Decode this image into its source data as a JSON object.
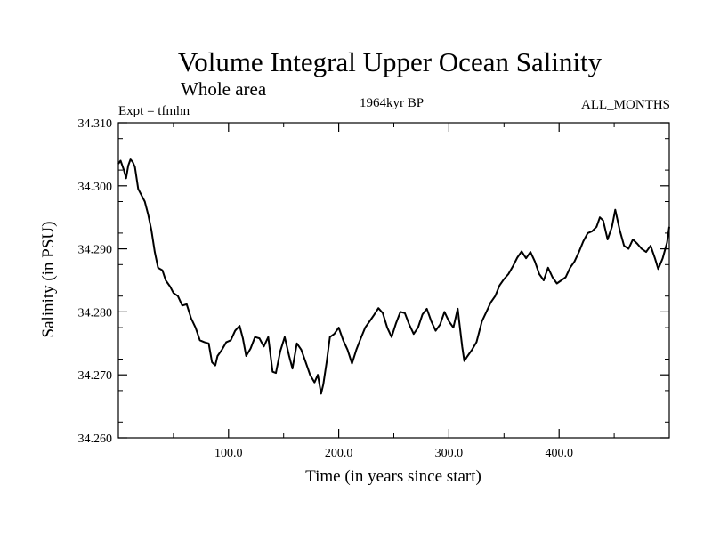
{
  "chart_data": {
    "type": "line",
    "title": "Volume Integral Upper Ocean Salinity",
    "subtitle": "Whole area",
    "left_label": "Expt = tfmhn",
    "center_label": "1964kyr BP",
    "right_label": "ALL_MONTHS",
    "xlabel": "Time (in years since start)",
    "ylabel": "Salinity (in PSU)",
    "xlim": [
      0,
      500
    ],
    "ylim": [
      34.26,
      34.31
    ],
    "xticks": [
      {
        "value": 100,
        "label": "100.0"
      },
      {
        "value": 200,
        "label": "200.0"
      },
      {
        "value": 300,
        "label": "300.0"
      },
      {
        "value": 400,
        "label": "400.0"
      }
    ],
    "yticks": [
      {
        "value": 34.26,
        "label": "34.260"
      },
      {
        "value": 34.27,
        "label": "34.270"
      },
      {
        "value": 34.28,
        "label": "34.280"
      },
      {
        "value": 34.29,
        "label": "34.290"
      },
      {
        "value": 34.3,
        "label": "34.300"
      },
      {
        "value": 34.31,
        "label": "34.310"
      }
    ],
    "grid": false,
    "series": [
      {
        "name": "salinity",
        "x": [
          0,
          2,
          5,
          7,
          9,
          11,
          13,
          15,
          18,
          21,
          24,
          27,
          30,
          33,
          36,
          38,
          40,
          43,
          47,
          50,
          54,
          58,
          62,
          66,
          70,
          74,
          78,
          82,
          85,
          88,
          90,
          94,
          98,
          102,
          106,
          110,
          113,
          116,
          120,
          124,
          128,
          132,
          136,
          140,
          143,
          147,
          151,
          155,
          158,
          162,
          166,
          170,
          174,
          178,
          181,
          184,
          186,
          189,
          192,
          196,
          200,
          204,
          208,
          212,
          216,
          220,
          224,
          228,
          232,
          236,
          240,
          244,
          248,
          252,
          256,
          260,
          264,
          268,
          272,
          276,
          280,
          284,
          288,
          292,
          296,
          300,
          304,
          308,
          312,
          314,
          317,
          321,
          325,
          330,
          334,
          338,
          342,
          346,
          350,
          354,
          358,
          362,
          366,
          370,
          374,
          378,
          382,
          386,
          390,
          394,
          398,
          402,
          406,
          410,
          414,
          418,
          422,
          426,
          430,
          434,
          437,
          440,
          444,
          448,
          451,
          455,
          459,
          463,
          467,
          471,
          475,
          479,
          483,
          487,
          490,
          494,
          498,
          500
        ],
        "values": [
          34.3035,
          34.304,
          34.3025,
          34.3012,
          34.3032,
          34.3042,
          34.3038,
          34.303,
          34.2995,
          34.2985,
          34.2975,
          34.2955,
          34.293,
          34.2895,
          34.287,
          34.2868,
          34.2866,
          34.285,
          34.284,
          34.283,
          34.2825,
          34.281,
          34.2812,
          34.279,
          34.2775,
          34.2755,
          34.2752,
          34.275,
          34.272,
          34.2715,
          34.273,
          34.274,
          34.2752,
          34.2755,
          34.277,
          34.2778,
          34.2758,
          34.273,
          34.2742,
          34.276,
          34.2758,
          34.2745,
          34.276,
          34.2705,
          34.2703,
          34.2738,
          34.276,
          34.273,
          34.271,
          34.275,
          34.274,
          34.272,
          34.27,
          34.2688,
          34.27,
          34.267,
          34.2685,
          34.272,
          34.276,
          34.2765,
          34.2775,
          34.2755,
          34.274,
          34.2718,
          34.274,
          34.2758,
          34.2775,
          34.2785,
          34.2795,
          34.2806,
          34.2798,
          34.2775,
          34.276,
          34.2782,
          34.28,
          34.2798,
          34.278,
          34.2765,
          34.2775,
          34.2796,
          34.2805,
          34.2785,
          34.277,
          34.278,
          34.28,
          34.2785,
          34.2775,
          34.2805,
          34.2745,
          34.2722,
          34.273,
          34.274,
          34.2752,
          34.2785,
          34.28,
          34.2815,
          34.2825,
          34.2842,
          34.2852,
          34.286,
          34.2872,
          34.2886,
          34.2896,
          34.2885,
          34.2895,
          34.288,
          34.286,
          34.285,
          34.287,
          34.2855,
          34.2845,
          34.285,
          34.2855,
          34.287,
          34.288,
          34.2895,
          34.2912,
          34.2925,
          34.2928,
          34.2935,
          34.295,
          34.2945,
          34.2915,
          34.2935,
          34.2962,
          34.293,
          34.2905,
          34.29,
          34.2915,
          34.2908,
          34.29,
          34.2895,
          34.2905,
          34.2885,
          34.2868,
          34.2885,
          34.291,
          34.2935
        ]
      }
    ]
  }
}
